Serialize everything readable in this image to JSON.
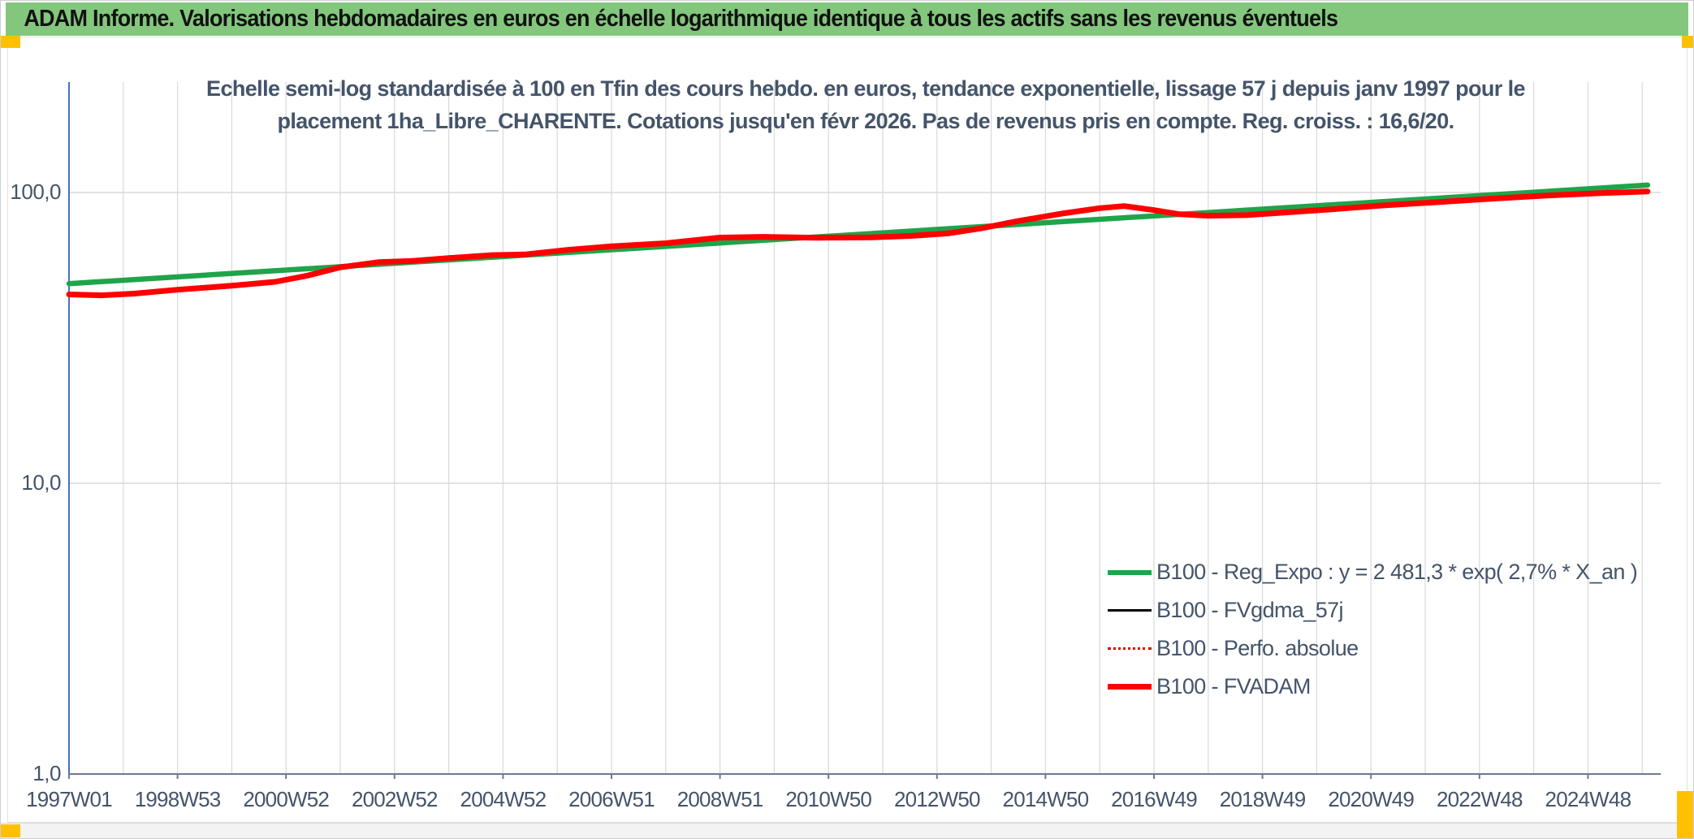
{
  "window": {
    "title": "ADAM Informe. Valorisations hebdomadaires en euros en échelle logarithmique identique à tous les actifs sans les revenus éventuels",
    "titlebar_color": "#83C77D",
    "accent_color": "#FFC000"
  },
  "chart_data": {
    "type": "line",
    "scale": "semi-log",
    "title": "Echelle semi-log standardisée à 100 en Tfin des cours hebdo. en euros, tendance exponentielle, lissage 57 j depuis janv 1997 pour le placement 1ha_Libre_CHARENTE. Cotations jusqu'en févr 2026. Pas de revenus pris en compte. Reg. croiss. : 16,6/20.",
    "title_lines": [
      "Echelle semi-log standardisée à 100 en Tfin des cours hebdo. en euros, tendance exponentielle, lissage 57 j depuis janv 1997 pour le",
      "placement 1ha_Libre_CHARENTE. Cotations jusqu'en févr 2026. Pas de revenus pris en compte. Reg. croiss. : 16,6/20."
    ],
    "grid": {
      "vertical_step_years": 1,
      "color": "#D9D9D9",
      "gridlines_on": true
    },
    "x_axis": {
      "start_year": 1997,
      "end_year": 2026.1,
      "tick_step_years": 2,
      "tick_labels": [
        "1997W01",
        "1998W53",
        "2000W52",
        "2002W52",
        "2004W52",
        "2006W51",
        "2008W51",
        "2010W50",
        "2012W50",
        "2014W50",
        "2016W49",
        "2018W49",
        "2020W49",
        "2022W48",
        "2024W48"
      ],
      "axis_color": "#6A7A95"
    },
    "y_axis": {
      "min": 1,
      "max": 240,
      "ticks": [
        {
          "label": "100,0",
          "value": 100
        },
        {
          "label": "10,0",
          "value": 10
        },
        {
          "label": "1,0",
          "value": 1
        }
      ],
      "axis_color": "#4472C4"
    },
    "legend_position": "inside-right-lower",
    "series": [
      {
        "name": "B100 - Reg_Expo : y = 2 481,3 * exp( 2,7% *  X_an )",
        "color": "#1FA44A",
        "style": "thick",
        "points": [
          [
            1997.0,
            48.6
          ],
          [
            2026.1,
            106.0
          ]
        ]
      },
      {
        "name": "B100 - FVgdma_57j",
        "color": "#000000",
        "style": "thin",
        "coincident_with": "B100 - FVADAM",
        "points": []
      },
      {
        "name": "B100 - Perfo. absolue",
        "color": "#E00000",
        "style": "dotted",
        "coincident_with": "B100 - FVADAM",
        "points": []
      },
      {
        "name": "B100 - FVADAM",
        "color": "#FE0000",
        "style": "thick",
        "points": [
          [
            1997.0,
            44.6
          ],
          [
            1997.6,
            44.3
          ],
          [
            1998.2,
            44.9
          ],
          [
            1999.0,
            46.3
          ],
          [
            2000.0,
            47.8
          ],
          [
            2000.8,
            49.3
          ],
          [
            2001.4,
            51.8
          ],
          [
            2002.0,
            55.3
          ],
          [
            2002.7,
            57.6
          ],
          [
            2003.3,
            58.1
          ],
          [
            2004.0,
            59.5
          ],
          [
            2004.8,
            60.9
          ],
          [
            2005.4,
            61.2
          ],
          [
            2006.2,
            63.5
          ],
          [
            2007.0,
            65.3
          ],
          [
            2008.0,
            66.9
          ],
          [
            2009.0,
            70.0
          ],
          [
            2009.8,
            70.4
          ],
          [
            2010.8,
            69.9
          ],
          [
            2011.8,
            70.1
          ],
          [
            2012.5,
            70.9
          ],
          [
            2013.2,
            72.3
          ],
          [
            2013.8,
            75.2
          ],
          [
            2014.5,
            79.8
          ],
          [
            2015.3,
            84.6
          ],
          [
            2016.0,
            88.3
          ],
          [
            2016.45,
            89.8
          ],
          [
            2017.0,
            87.0
          ],
          [
            2017.45,
            84.3
          ],
          [
            2018.0,
            83.2
          ],
          [
            2018.7,
            83.6
          ],
          [
            2019.5,
            85.6
          ],
          [
            2020.3,
            87.6
          ],
          [
            2021.2,
            90.2
          ],
          [
            2022.2,
            92.6
          ],
          [
            2023.2,
            95.1
          ],
          [
            2024.2,
            97.5
          ],
          [
            2025.2,
            99.4
          ],
          [
            2026.1,
            100.8
          ]
        ]
      }
    ]
  }
}
